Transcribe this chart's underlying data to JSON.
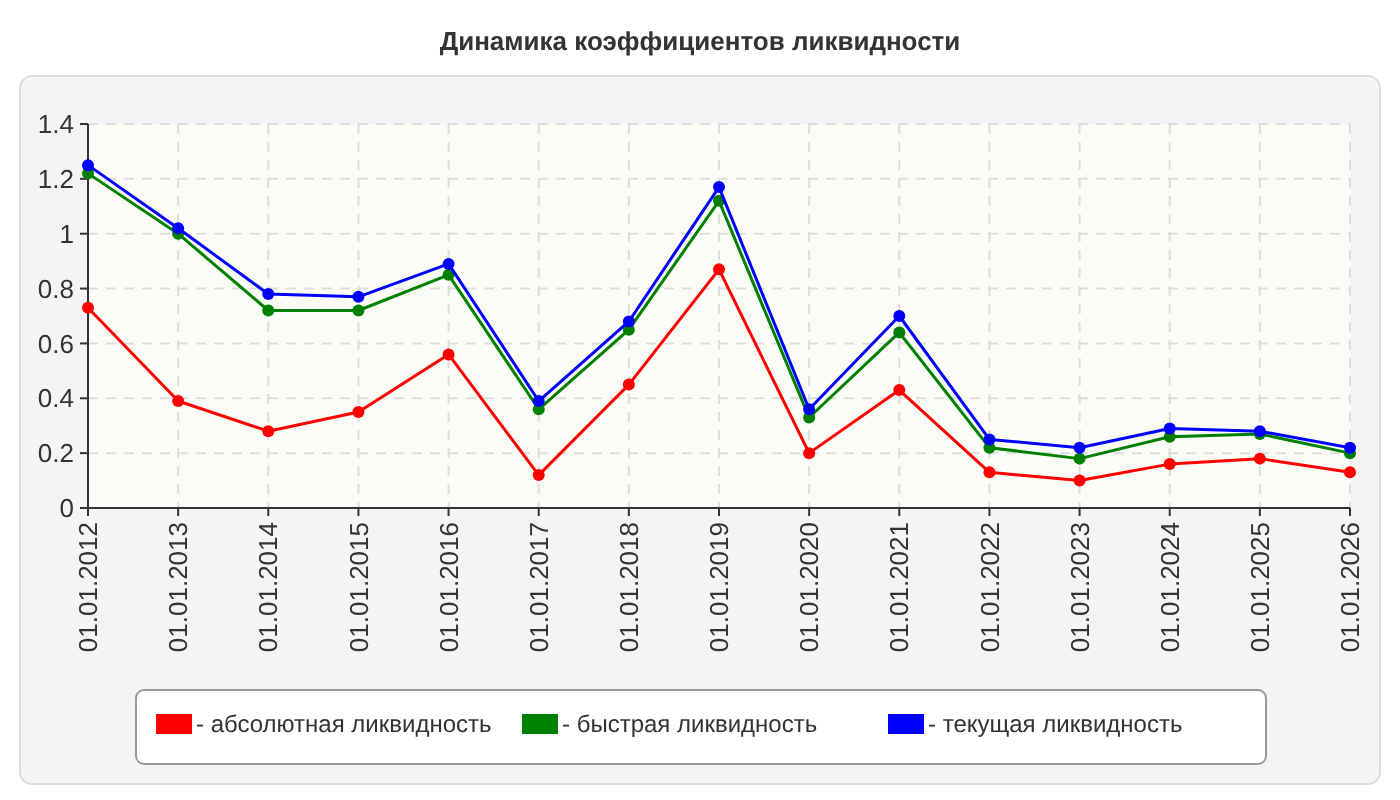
{
  "chart_data": {
    "type": "line",
    "title": "Динамика коэффициентов ликвидности",
    "categories": [
      "01.01.2012",
      "01.01.2013",
      "01.01.2014",
      "01.01.2015",
      "01.01.2016",
      "01.01.2017",
      "01.01.2018",
      "01.01.2019",
      "01.01.2020",
      "01.01.2021",
      "01.01.2022",
      "01.01.2023",
      "01.01.2024",
      "01.01.2025",
      "01.01.2026"
    ],
    "series": [
      {
        "name": "- абсолютная ликвидность",
        "color": "#ff0000",
        "values": [
          0.73,
          0.39,
          0.28,
          0.35,
          0.56,
          0.12,
          0.45,
          0.87,
          0.2,
          0.43,
          0.13,
          0.1,
          0.16,
          0.18,
          0.13
        ]
      },
      {
        "name": "- быстрая ликвидность",
        "color": "#008000",
        "values": [
          1.22,
          1.0,
          0.72,
          0.72,
          0.85,
          0.36,
          0.65,
          1.12,
          0.33,
          0.64,
          0.22,
          0.18,
          0.26,
          0.27,
          0.2
        ]
      },
      {
        "name": "- текущая ликвидность",
        "color": "#0000ff",
        "values": [
          1.25,
          1.02,
          0.78,
          0.77,
          0.89,
          0.39,
          0.68,
          1.17,
          0.36,
          0.7,
          0.25,
          0.22,
          0.29,
          0.28,
          0.22
        ]
      }
    ],
    "ylim": [
      0,
      1.4
    ],
    "yticks": [
      0,
      0.2,
      0.4,
      0.6,
      0.8,
      1,
      1.2,
      1.4
    ],
    "grid": true,
    "legend": "bottom",
    "marker": "circle",
    "line_style": "solid"
  }
}
